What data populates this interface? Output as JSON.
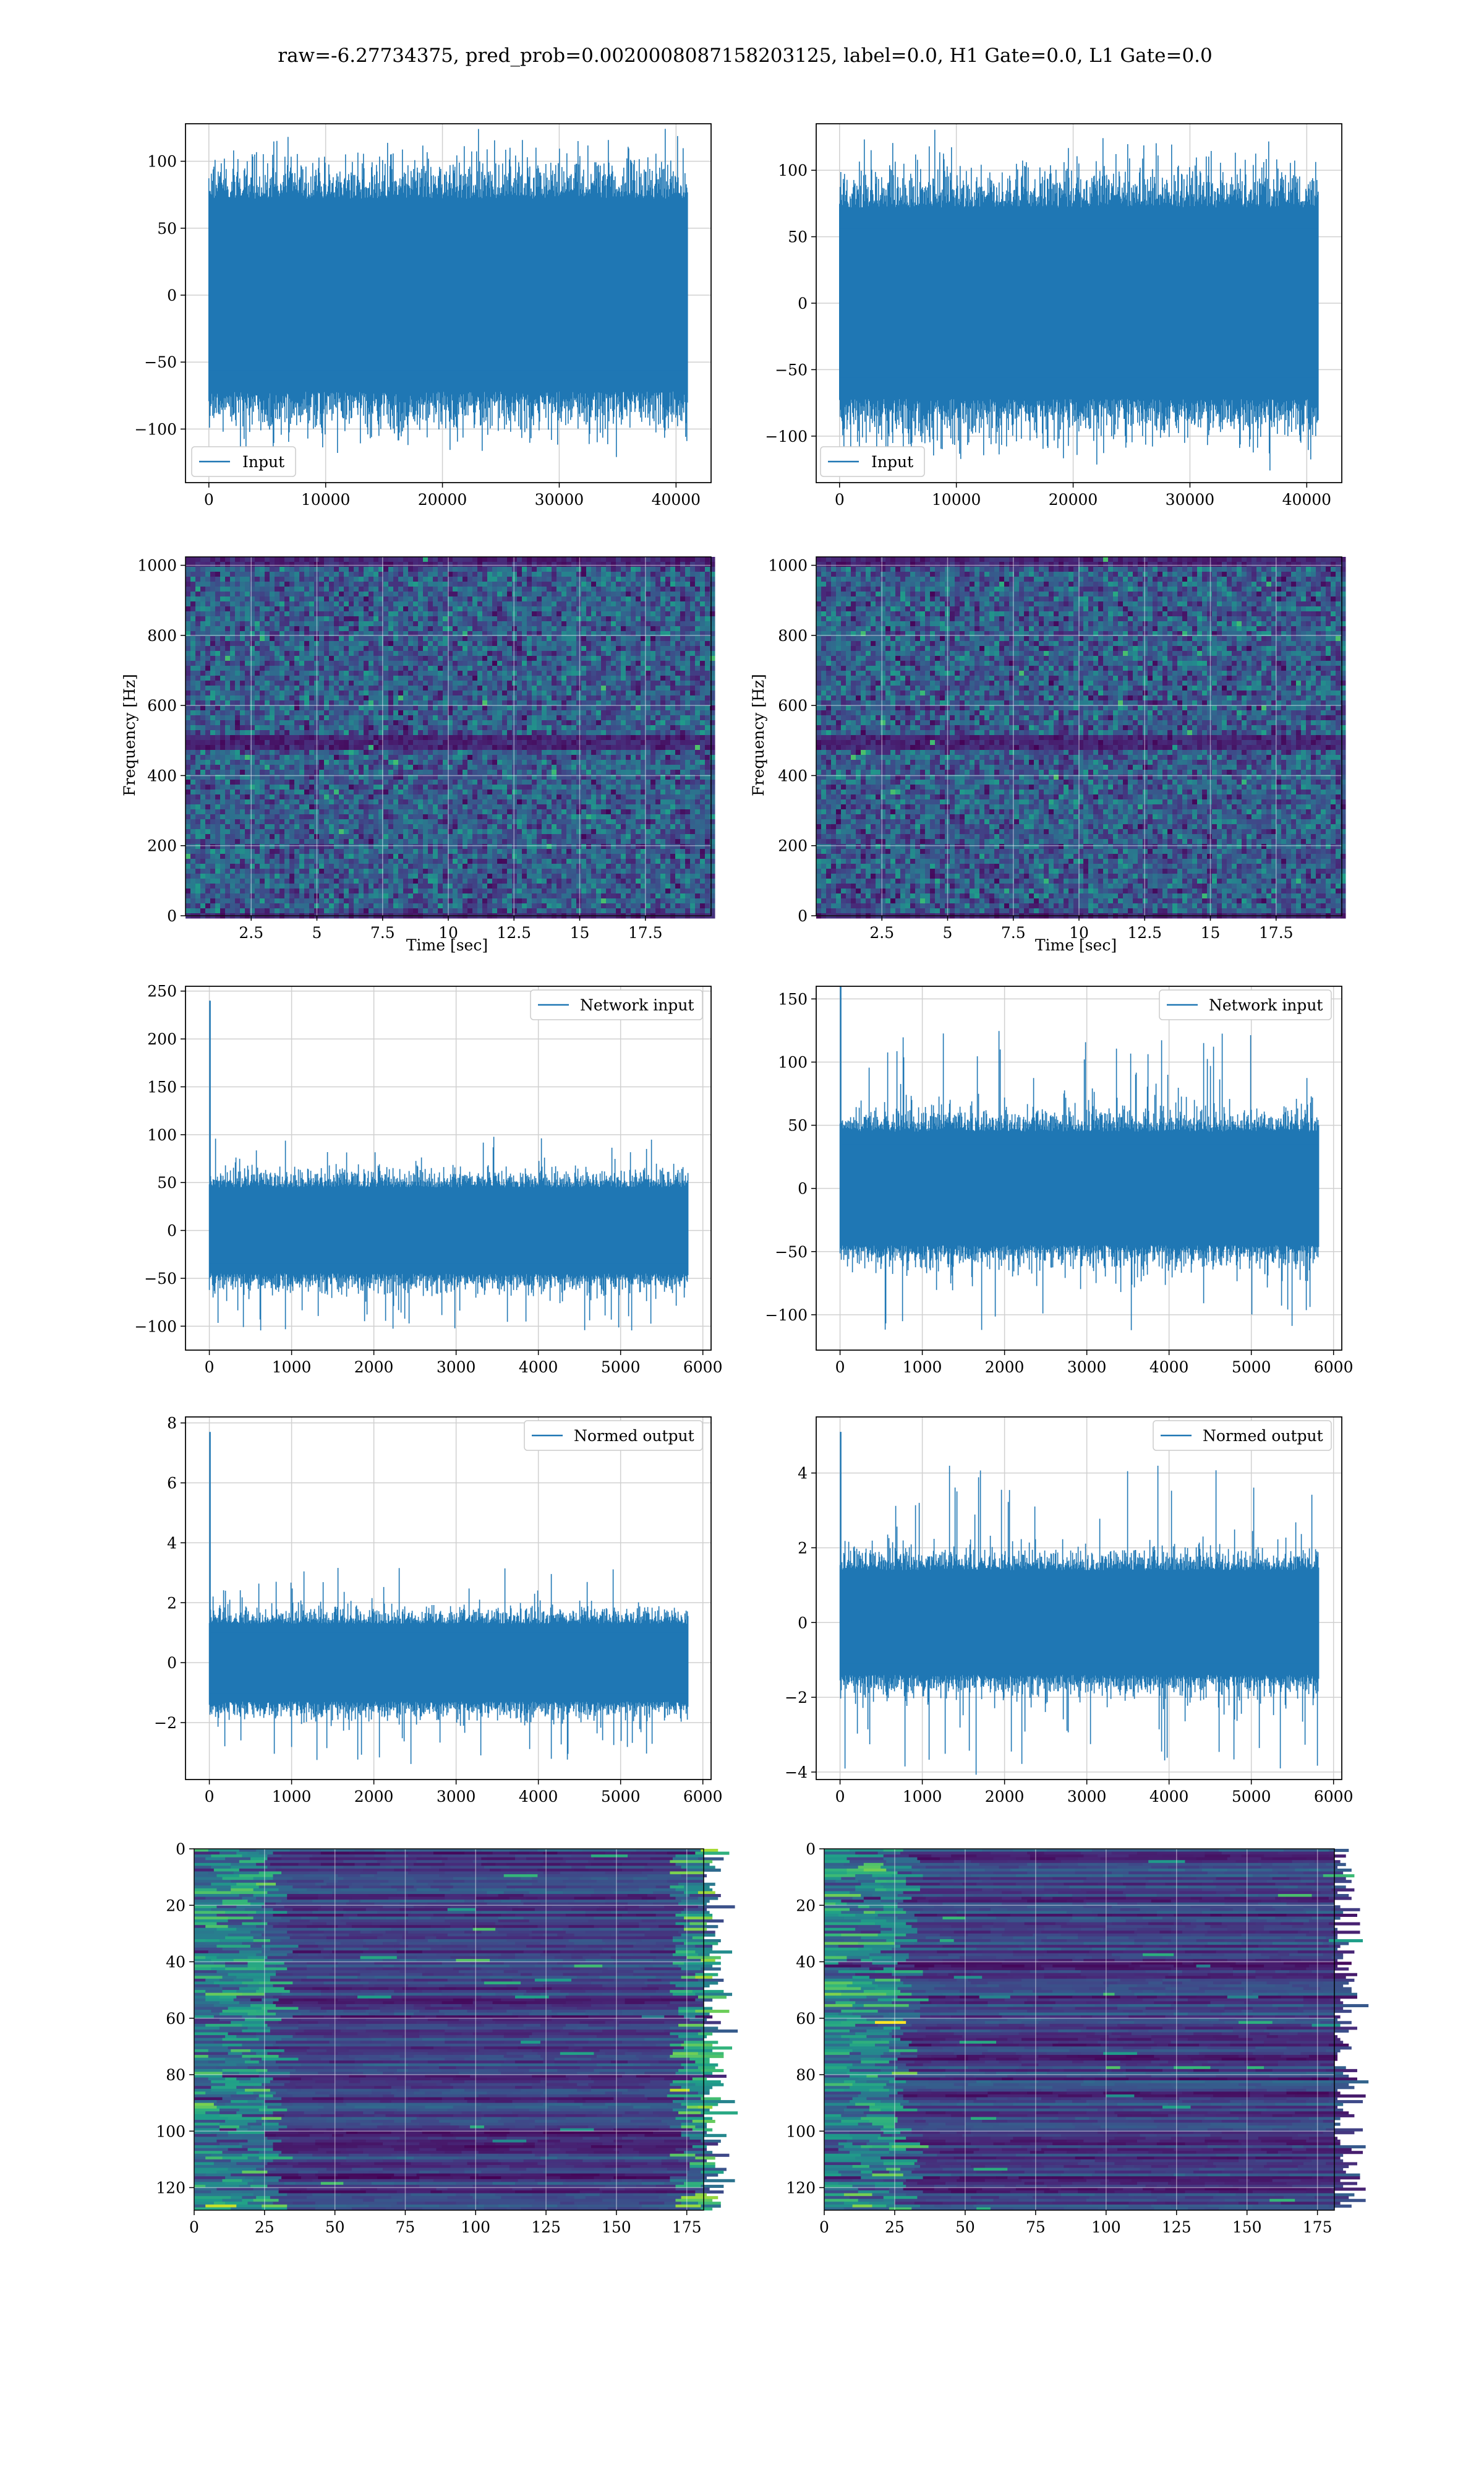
{
  "figure": {
    "title": "raw=-6.27734375, pred_prob=0.0020008087158203125, label=0.0, H1 Gate=0.0, L1 Gate=0.0"
  },
  "colors": {
    "line": "#1f77b4",
    "grid": "#d0d0d0",
    "viridis": [
      "#440154",
      "#482878",
      "#3e4a89",
      "#31688e",
      "#26828e",
      "#1f9e89",
      "#35b779",
      "#6ece58",
      "#b5de2b",
      "#fde725"
    ]
  },
  "chart_data": [
    {
      "id": "p0",
      "type": "line",
      "detector": "H1",
      "row": 0,
      "col": 0,
      "legend": "Input",
      "legend_loc": "lower left",
      "xlim": [
        -2000,
        43000
      ],
      "ylim": [
        -140,
        128
      ],
      "xticks": [
        0,
        10000,
        20000,
        30000,
        40000
      ],
      "yticks": [
        -100,
        -50,
        0,
        50,
        100
      ],
      "signal": {
        "n": 40960,
        "core": [
          -72,
          72
        ],
        "extremes": [
          -125,
          110
        ],
        "spike": null
      },
      "grid": true
    },
    {
      "id": "p1",
      "type": "line",
      "detector": "L1",
      "row": 0,
      "col": 1,
      "legend": "Input",
      "legend_loc": "lower left",
      "xlim": [
        -2000,
        43000
      ],
      "ylim": [
        -135,
        135
      ],
      "xticks": [
        0,
        10000,
        20000,
        30000,
        40000
      ],
      "yticks": [
        -100,
        -50,
        0,
        50,
        100
      ],
      "signal": {
        "n": 40960,
        "core": [
          -72,
          72
        ],
        "extremes": [
          -122,
          125
        ],
        "spike": null
      },
      "grid": true
    },
    {
      "id": "p2",
      "type": "heatmap",
      "detector": "H1",
      "row": 1,
      "col": 0,
      "ylabel": "Frequency [Hz]",
      "xlabel": "Time [sec]",
      "xlim": [
        0,
        20
      ],
      "ylim": [
        0,
        1024
      ],
      "xticks": [
        2.5,
        5.0,
        7.5,
        10.0,
        12.5,
        15.0,
        17.5
      ],
      "yticks": [
        0,
        200,
        400,
        600,
        800,
        1000
      ],
      "grid": true
    },
    {
      "id": "p3",
      "type": "heatmap",
      "detector": "L1",
      "row": 1,
      "col": 1,
      "ylabel": "Frequency [Hz]",
      "xlabel": "Time [sec]",
      "xlim": [
        0,
        20
      ],
      "ylim": [
        0,
        1024
      ],
      "xticks": [
        2.5,
        5.0,
        7.5,
        10.0,
        12.5,
        15.0,
        17.5
      ],
      "yticks": [
        0,
        200,
        400,
        600,
        800,
        1000
      ],
      "grid": true
    },
    {
      "id": "p4",
      "type": "line",
      "detector": "H1",
      "row": 2,
      "col": 0,
      "legend": "Network input",
      "legend_loc": "upper right",
      "xlim": [
        -290,
        6100
      ],
      "ylim": [
        -125,
        255
      ],
      "xticks": [
        0,
        1000,
        2000,
        3000,
        4000,
        5000,
        6000
      ],
      "yticks": [
        -100,
        -50,
        0,
        50,
        100,
        150,
        200,
        250
      ],
      "signal": {
        "n": 5820,
        "core": [
          -45,
          45
        ],
        "extremes": [
          -105,
          100
        ],
        "spike": 240
      },
      "grid": true
    },
    {
      "id": "p5",
      "type": "line",
      "detector": "L1",
      "row": 2,
      "col": 1,
      "legend": "Network input",
      "legend_loc": "upper right",
      "xlim": [
        -290,
        6100
      ],
      "ylim": [
        -128,
        160
      ],
      "xticks": [
        0,
        1000,
        2000,
        3000,
        4000,
        5000,
        6000
      ],
      "yticks": [
        -100,
        -50,
        0,
        50,
        100,
        150
      ],
      "signal": {
        "n": 5820,
        "core": [
          -45,
          45
        ],
        "extremes": [
          -115,
          125
        ],
        "spike": 160
      },
      "grid": true
    },
    {
      "id": "p6",
      "type": "line",
      "detector": "H1",
      "row": 3,
      "col": 0,
      "legend": "Normed output",
      "legend_loc": "upper right",
      "xlim": [
        -290,
        6100
      ],
      "ylim": [
        -3.9,
        8.2
      ],
      "xticks": [
        0,
        1000,
        2000,
        3000,
        4000,
        5000,
        6000
      ],
      "yticks": [
        -2,
        0,
        2,
        4,
        6,
        8
      ],
      "signal": {
        "n": 5820,
        "core": [
          -1.3,
          1.3
        ],
        "extremes": [
          -3.4,
          3.2
        ],
        "spike": 7.7
      },
      "grid": true
    },
    {
      "id": "p7",
      "type": "line",
      "detector": "L1",
      "row": 3,
      "col": 1,
      "legend": "Normed output",
      "legend_loc": "upper right",
      "xlim": [
        -290,
        6100
      ],
      "ylim": [
        -4.2,
        5.5
      ],
      "xticks": [
        0,
        1000,
        2000,
        3000,
        4000,
        5000,
        6000
      ],
      "yticks": [
        -4,
        -2,
        0,
        2,
        4
      ],
      "signal": {
        "n": 5820,
        "core": [
          -1.4,
          1.4
        ],
        "extremes": [
          -4.1,
          4.3
        ],
        "spike": 5.1
      },
      "grid": true
    },
    {
      "id": "p8",
      "type": "heatmap",
      "detector": "H1",
      "row": 4,
      "col": 0,
      "xlim": [
        0,
        181
      ],
      "ylim": [
        128,
        0
      ],
      "xticks": [
        0,
        25,
        50,
        75,
        100,
        125,
        150,
        175
      ],
      "yticks": [
        0,
        20,
        40,
        60,
        80,
        100,
        120
      ],
      "grid": true
    },
    {
      "id": "p9",
      "type": "heatmap",
      "detector": "L1",
      "row": 4,
      "col": 1,
      "xlim": [
        0,
        181
      ],
      "ylim": [
        128,
        0
      ],
      "xticks": [
        0,
        25,
        50,
        75,
        100,
        125,
        150,
        175
      ],
      "yticks": [
        0,
        20,
        40,
        60,
        80,
        100,
        120
      ],
      "grid": true
    }
  ]
}
